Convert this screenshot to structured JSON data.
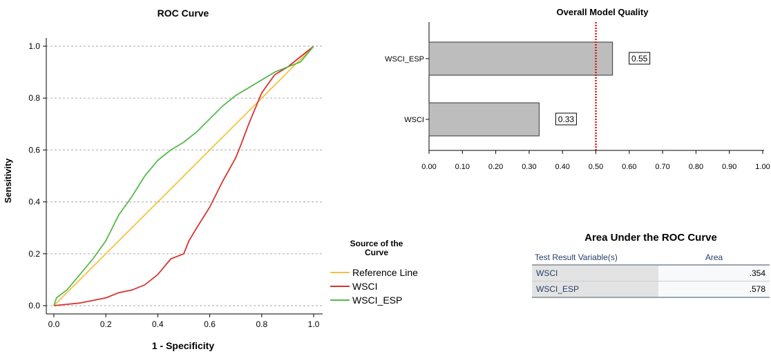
{
  "chart_data": [
    {
      "type": "line",
      "title": "ROC Curve",
      "xlabel": "1 - Specificity",
      "ylabel": "Sensitivity",
      "xlim": [
        0,
        1
      ],
      "ylim": [
        0,
        1
      ],
      "xticks": [
        "0.0",
        "0.2",
        "0.4",
        "0.6",
        "0.8",
        "1.0"
      ],
      "yticks": [
        "0.0",
        "0.2",
        "0.4",
        "0.6",
        "0.8",
        "1.0"
      ],
      "grid": "horizontal dashed",
      "legend": {
        "title": "Source of the Curve",
        "placement": "right",
        "entries": [
          "Reference Line",
          "WSCI",
          "WSCI_ESP"
        ]
      },
      "series": [
        {
          "name": "Reference Line",
          "color": "#f5c044",
          "x": [
            0,
            1
          ],
          "y": [
            0,
            1
          ]
        },
        {
          "name": "WSCI",
          "color": "#d9302c",
          "x": [
            0,
            0.05,
            0.1,
            0.15,
            0.2,
            0.25,
            0.3,
            0.35,
            0.4,
            0.45,
            0.5,
            0.52,
            0.55,
            0.6,
            0.65,
            0.7,
            0.72,
            0.75,
            0.8,
            0.85,
            0.9,
            0.95,
            1.0
          ],
          "y": [
            0,
            0.005,
            0.01,
            0.02,
            0.03,
            0.05,
            0.06,
            0.08,
            0.12,
            0.18,
            0.2,
            0.25,
            0.3,
            0.38,
            0.48,
            0.57,
            0.62,
            0.7,
            0.82,
            0.89,
            0.92,
            0.96,
            1.0
          ]
        },
        {
          "name": "WSCI_ESP",
          "color": "#55b94c",
          "x": [
            0,
            0.01,
            0.05,
            0.1,
            0.15,
            0.2,
            0.25,
            0.3,
            0.35,
            0.4,
            0.45,
            0.5,
            0.55,
            0.6,
            0.65,
            0.7,
            0.75,
            0.8,
            0.85,
            0.9,
            0.95,
            1.0
          ],
          "y": [
            0,
            0.03,
            0.06,
            0.12,
            0.18,
            0.25,
            0.35,
            0.42,
            0.5,
            0.56,
            0.6,
            0.63,
            0.67,
            0.72,
            0.77,
            0.81,
            0.84,
            0.87,
            0.9,
            0.92,
            0.94,
            1.0
          ]
        }
      ]
    },
    {
      "type": "bar",
      "orientation": "horizontal",
      "title": "Overall Model Quality",
      "categories": [
        "WSCI_ESP",
        "WSCI"
      ],
      "values": [
        0.55,
        0.33
      ],
      "value_labels": [
        "0.55",
        "0.33"
      ],
      "bar_color": "#bdbdbd",
      "xlim": [
        0,
        1
      ],
      "xticks": [
        "0.00",
        "0.10",
        "0.20",
        "0.30",
        "0.40",
        "0.50",
        "0.60",
        "0.70",
        "0.80",
        "0.90",
        "1.00"
      ],
      "reference_line": {
        "x": 0.5,
        "color": "#e01010",
        "style": "dotted"
      }
    },
    {
      "type": "table",
      "title": "Area Under the ROC Curve",
      "columns": [
        "Test Result Variable(s)",
        "Area"
      ],
      "rows": [
        {
          "variable": "WSCI",
          "area": ".354"
        },
        {
          "variable": "WSCI_ESP",
          "area": ".578"
        }
      ]
    }
  ]
}
